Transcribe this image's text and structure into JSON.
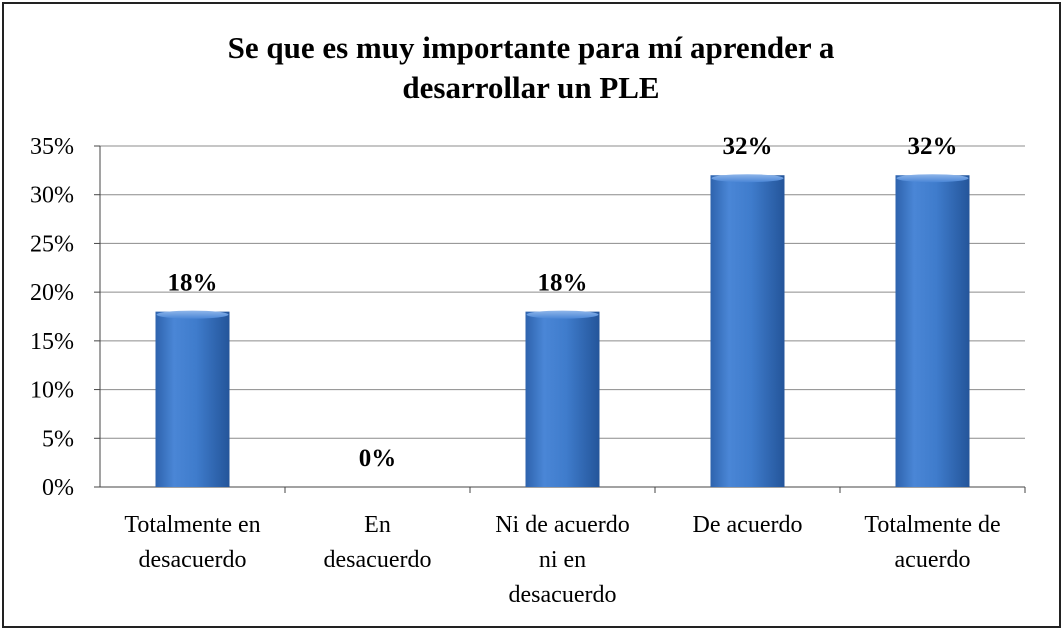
{
  "chart_data": {
    "type": "bar",
    "title_lines": [
      "Se que es muy importante  para mí aprender a",
      "desarrollar un PLE"
    ],
    "categories": [
      [
        "Totalmente en",
        "desacuerdo"
      ],
      [
        "En",
        "desacuerdo"
      ],
      [
        "Ni de acuerdo",
        "ni en",
        "desacuerdo"
      ],
      [
        "De acuerdo"
      ],
      [
        "Totalmente de",
        "acuerdo"
      ]
    ],
    "values": [
      18,
      0,
      18,
      32,
      32
    ],
    "data_labels": [
      "18%",
      "0%",
      "18%",
      "32%",
      "32%"
    ],
    "y_ticks": [
      "0%",
      "5%",
      "10%",
      "15%",
      "20%",
      "25%",
      "30%",
      "35%"
    ],
    "ylim": [
      0,
      35
    ],
    "y_step": 5,
    "xlabel": "",
    "ylabel": "",
    "grid": true,
    "bar_color": "#3f7ccc"
  }
}
